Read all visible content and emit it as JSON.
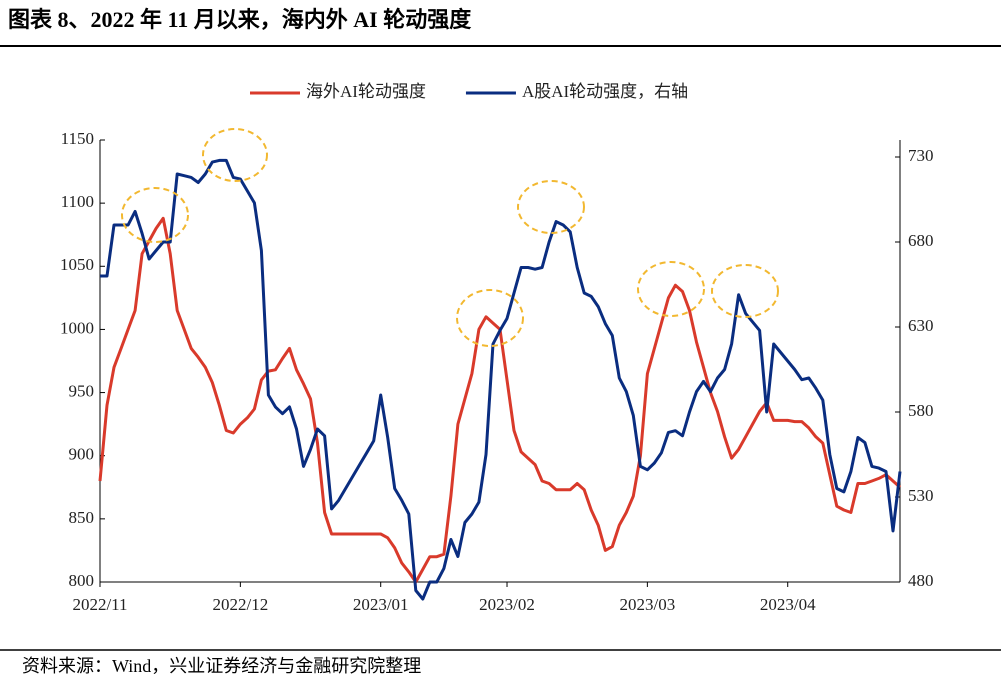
{
  "header": {
    "title": "图表 8、2022 年 11 月以来，海内外 AI 轮动强度"
  },
  "footer": {
    "source": "资料来源：Wind，兴业证券经济与金融研究院整理"
  },
  "chart_data": {
    "type": "line",
    "categories": [
      "2022/11",
      null,
      null,
      null,
      null,
      null,
      null,
      null,
      null,
      null,
      null,
      null,
      null,
      null,
      null,
      null,
      null,
      null,
      null,
      null,
      "2022/12",
      null,
      null,
      null,
      null,
      null,
      null,
      null,
      null,
      null,
      null,
      null,
      null,
      null,
      null,
      null,
      null,
      null,
      null,
      null,
      "2023/01",
      null,
      null,
      null,
      null,
      null,
      null,
      null,
      null,
      null,
      null,
      null,
      null,
      null,
      null,
      null,
      null,
      null,
      "2023/02",
      null,
      null,
      null,
      null,
      null,
      null,
      null,
      null,
      null,
      null,
      null,
      null,
      null,
      null,
      null,
      null,
      null,
      null,
      null,
      "2023/03",
      null,
      null,
      null,
      null,
      null,
      null,
      null,
      null,
      null,
      null,
      null,
      null,
      null,
      null,
      null,
      null,
      null,
      null,
      null,
      "2023/04",
      null,
      null,
      null,
      null,
      null,
      null,
      null,
      null,
      null,
      null,
      null,
      null,
      null,
      null,
      null,
      null
    ],
    "series": [
      {
        "name": "海外AI轮动强度",
        "color": "#d93a2b",
        "axis": "y",
        "values": [
          880,
          940,
          970,
          985,
          1000,
          1015,
          1060,
          1070,
          1080,
          1088,
          1060,
          1015,
          1000,
          985,
          978,
          970,
          958,
          940,
          920,
          918,
          925,
          930,
          937,
          960,
          967,
          968,
          977,
          985,
          968,
          957,
          945,
          910,
          855,
          838,
          838,
          838,
          838,
          838,
          838,
          838,
          838,
          835,
          827,
          815,
          808,
          800,
          810,
          820,
          820,
          822,
          868,
          925,
          945,
          965,
          1000,
          1010,
          1005,
          1000,
          960,
          920,
          903,
          898,
          893,
          880,
          878,
          873,
          873,
          873,
          878,
          873,
          857,
          845,
          825,
          828,
          845,
          855,
          868,
          900,
          965,
          985,
          1005,
          1025,
          1035,
          1030,
          1015,
          990,
          970,
          950,
          935,
          915,
          898,
          905,
          915,
          925,
          935,
          942,
          928,
          928,
          928,
          927,
          927,
          922,
          915,
          910,
          885,
          860,
          857,
          855,
          878,
          878,
          880,
          882,
          885,
          880,
          875
        ]
      },
      {
        "name": "A股AI轮动强度，右轴",
        "color": "#0a2d80",
        "axis": "y2",
        "values": [
          660,
          660,
          690,
          690,
          690,
          698,
          685,
          670,
          675,
          680,
          680,
          720,
          719,
          718,
          715,
          720,
          727,
          728,
          728,
          718,
          717,
          710,
          703,
          675,
          590,
          583,
          579,
          583,
          570,
          548,
          558,
          570,
          566,
          523,
          528,
          535,
          542,
          549,
          556,
          563,
          590,
          565,
          535,
          528,
          520,
          475,
          470,
          480,
          480,
          488,
          505,
          495,
          515,
          520,
          527,
          555,
          620,
          628,
          635,
          650,
          665,
          665,
          664,
          665,
          680,
          692,
          690,
          686,
          665,
          650,
          648,
          642,
          632,
          625,
          600,
          592,
          578,
          548,
          546,
          550,
          556,
          568,
          569,
          566,
          580,
          592,
          598,
          592,
          600,
          605,
          620,
          649,
          638,
          633,
          628,
          580,
          620,
          615,
          610,
          605,
          599,
          600,
          594,
          587,
          555,
          535,
          533,
          545,
          565,
          562,
          548,
          547,
          545,
          510,
          545
        ]
      }
    ],
    "ylim": [
      800,
      1150
    ],
    "yticks": [
      800,
      850,
      900,
      950,
      1000,
      1050,
      1100,
      1150
    ],
    "y2lim": [
      480,
      740
    ],
    "y2ticks": [
      480,
      530,
      580,
      630,
      680,
      730
    ],
    "legend": "top"
  }
}
